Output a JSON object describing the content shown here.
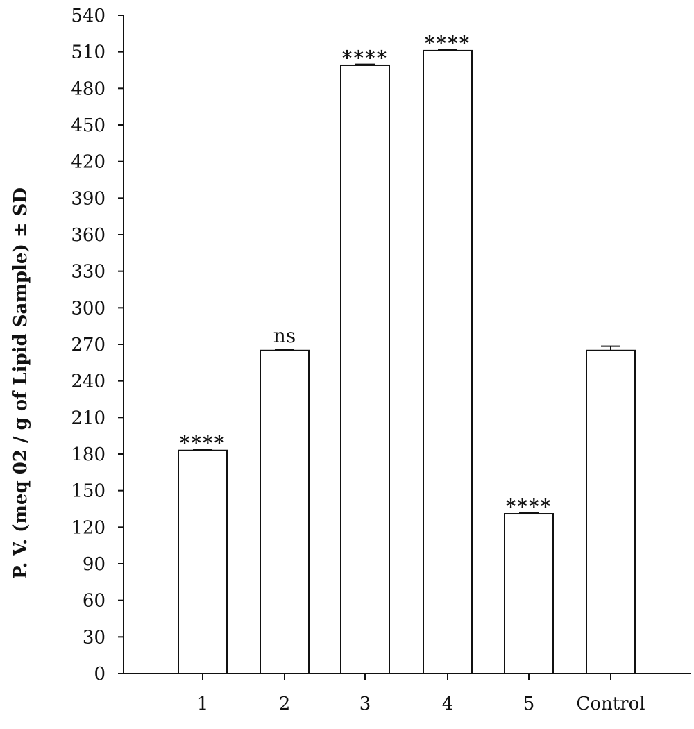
{
  "chart_data": {
    "type": "bar",
    "categories": [
      "1",
      "2",
      "3",
      "4",
      "5",
      "Control"
    ],
    "values": [
      183,
      265,
      499,
      511,
      131,
      265
    ],
    "errors": [
      0.8,
      0.8,
      0.8,
      0.8,
      0.8,
      3.5
    ],
    "annotations": [
      "****",
      "ns",
      "****",
      "****",
      "****",
      ""
    ],
    "ylabel": "P. V. (meq 02 / g of Lipid Sample) ± SD",
    "xlabel": "",
    "ylim": [
      0,
      540
    ],
    "yticks": [
      0,
      30,
      60,
      90,
      120,
      150,
      180,
      210,
      240,
      270,
      300,
      330,
      360,
      390,
      420,
      450,
      480,
      510,
      540
    ],
    "bar_fill": "#ffffff",
    "bar_stroke": "#111111",
    "grid": false,
    "legend": "none"
  }
}
